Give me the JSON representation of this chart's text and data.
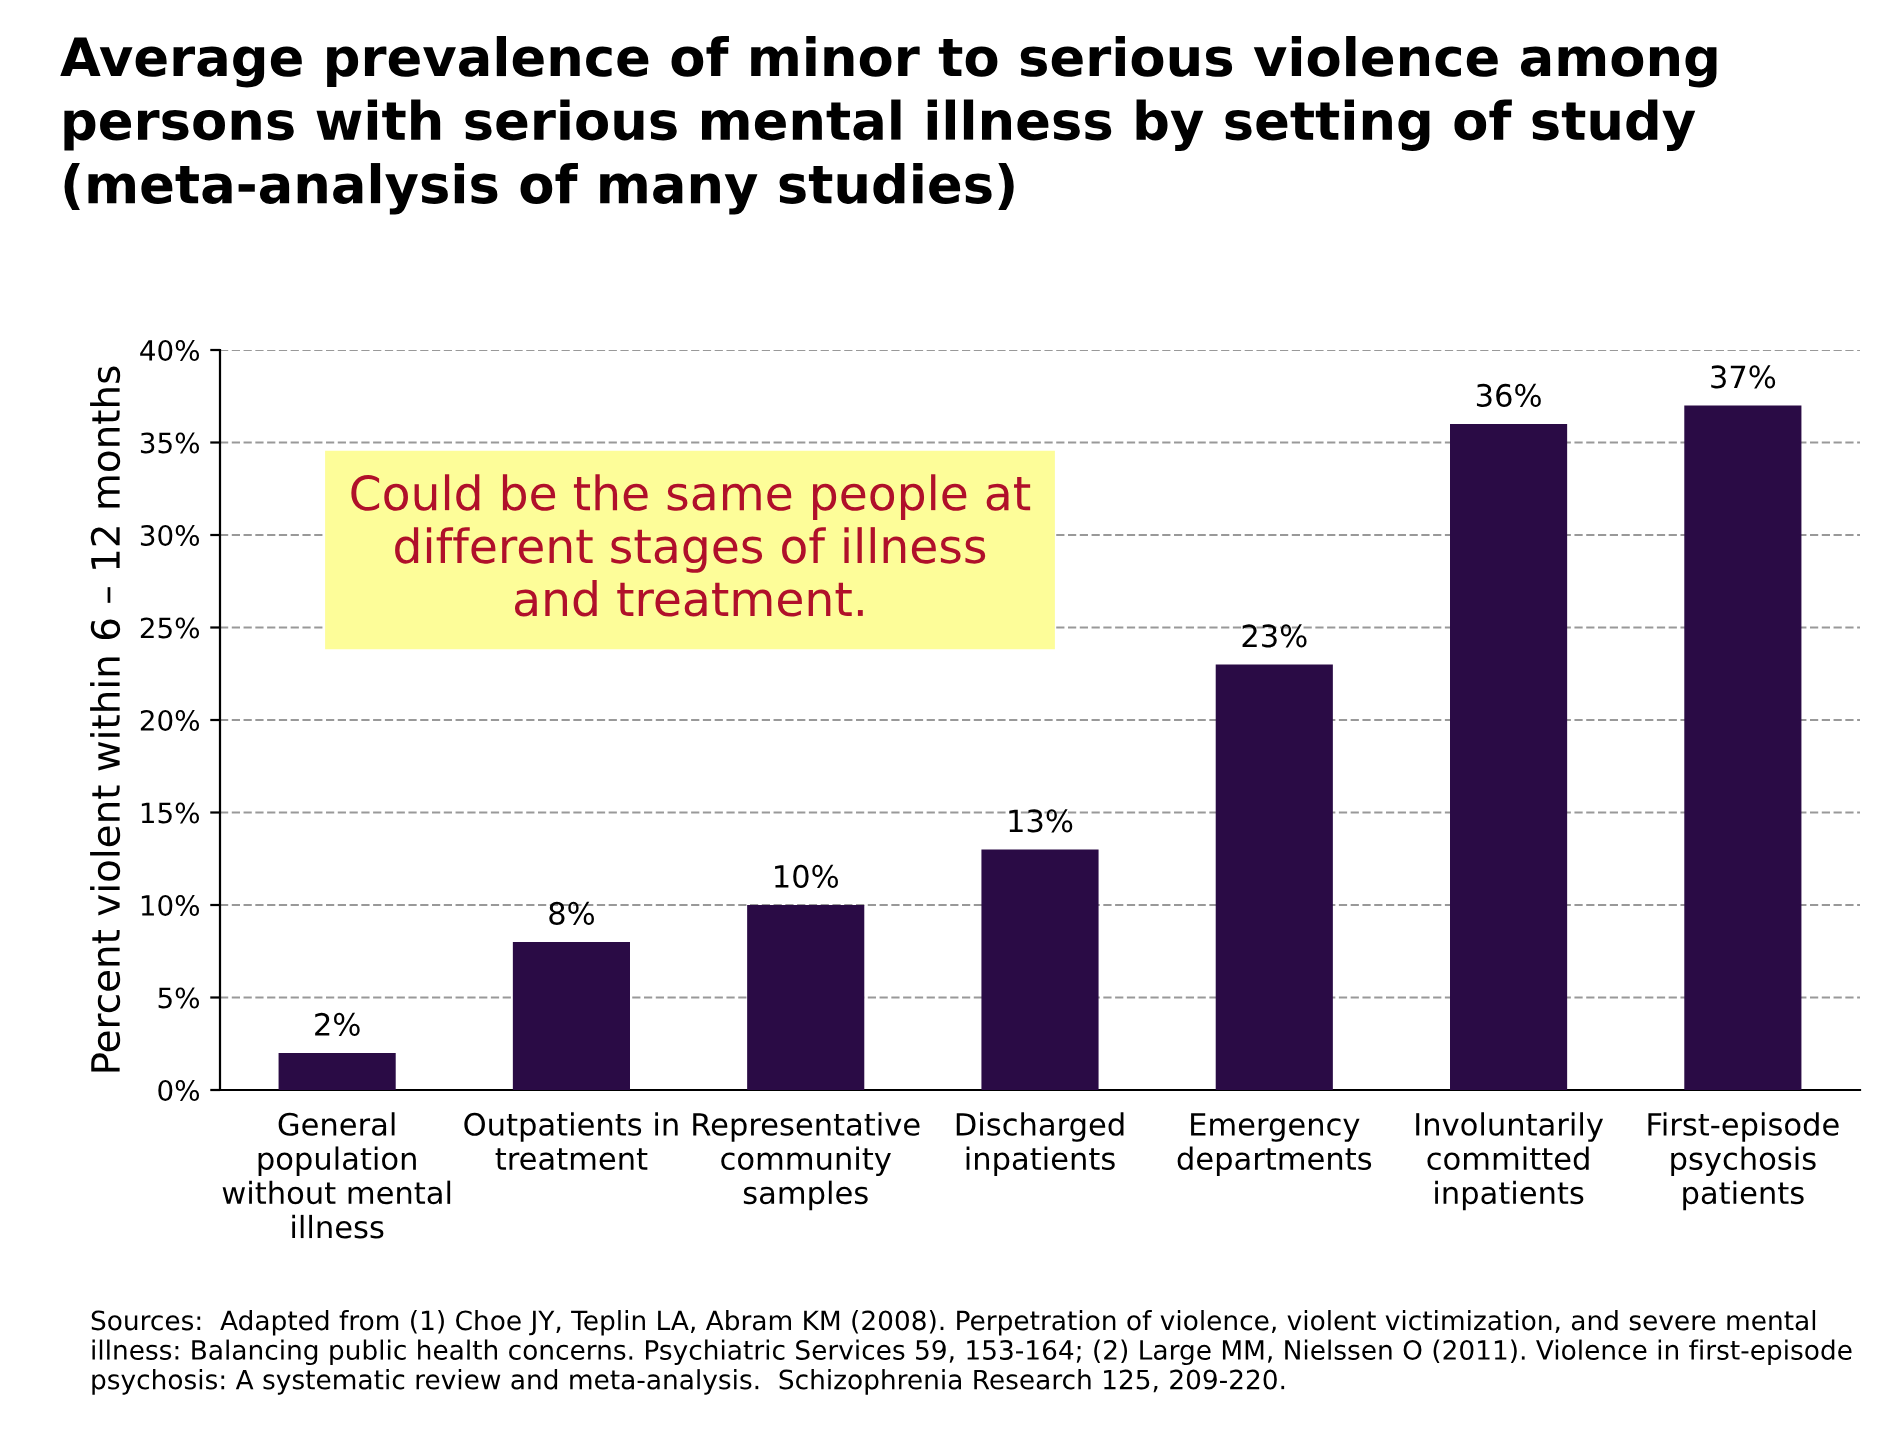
{
  "chart_data": {
    "type": "bar",
    "title": "Average prevalence of minor to serious violence among\npersons with serious mental illness by setting of study\n(meta-analysis of many studies)",
    "ylabel": "Percent violent within 6 – 12 months",
    "categories": [
      "General\npopulation\nwithout mental\nillness",
      "Outpatients in\ntreatment",
      "Representative\ncommunity\nsamples",
      "Discharged\ninpatients",
      "Emergency\ndepartments",
      "Involuntarily\ncommitted\ninpatients",
      "First-episode\npsychosis\npatients"
    ],
    "values": [
      2,
      8,
      10,
      13,
      23,
      36,
      37
    ],
    "value_labels": [
      "2%",
      "8%",
      "10%",
      "13%",
      "23%",
      "36%",
      "37%"
    ],
    "color": "#2a0b45",
    "ylim": [
      0,
      40
    ],
    "yticks": [
      {
        "value": 0,
        "label": "0%"
      },
      {
        "value": 5,
        "label": "5%"
      },
      {
        "value": 10,
        "label": "10%"
      },
      {
        "value": 15,
        "label": "15%"
      },
      {
        "value": 20,
        "label": "20%"
      },
      {
        "value": 25,
        "label": "25%"
      },
      {
        "value": 30,
        "label": "30%"
      },
      {
        "value": 35,
        "label": "35%"
      },
      {
        "value": 40,
        "label": "40%"
      }
    ],
    "grid": "y",
    "annotations": [
      "Could be the same people at\ndifferent stages of illness\nand treatment.",
      "Sources:  Adapted from (1) Choe JY, Teplin LA, Abram KM (2008). Perpetration of violence, violent victimization, and severe mental illness: Balancing public health concerns. Psychiatric Services 59, 153-164; (2) Large MM, Nielssen O (2011). Violence in first-episode psychosis: A systematic review and meta-analysis.  Schizophrenia Research 125, 209-220."
    ]
  }
}
